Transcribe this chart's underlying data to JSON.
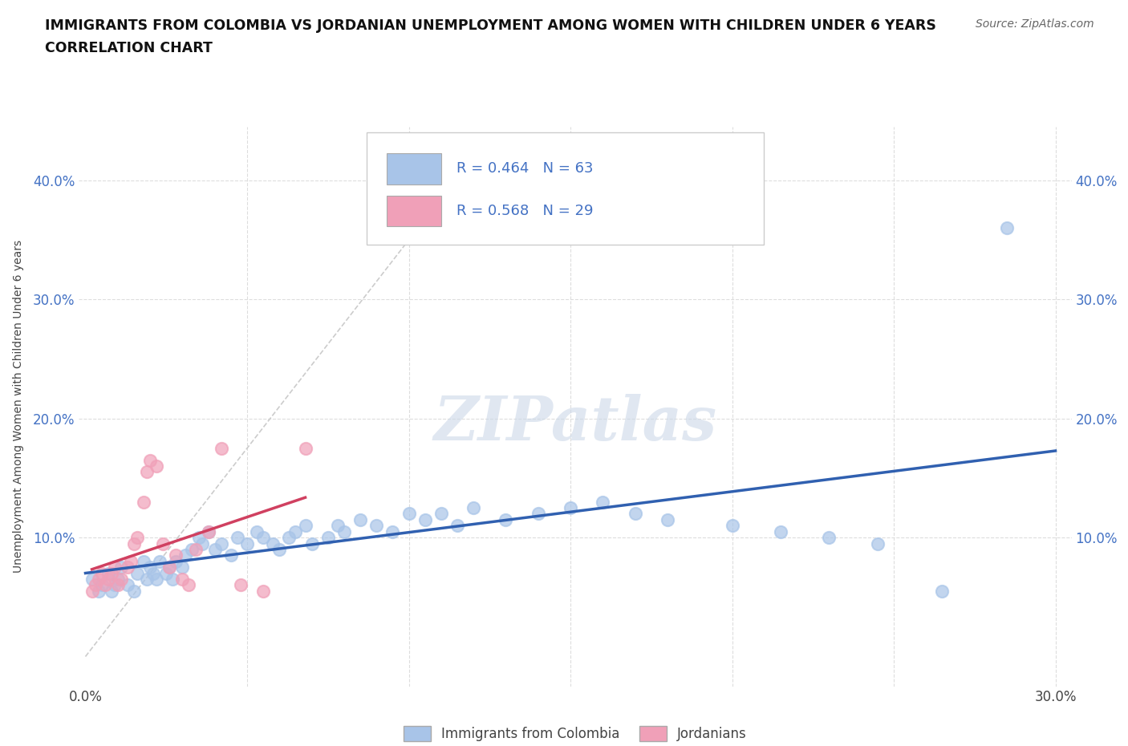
{
  "title_line1": "IMMIGRANTS FROM COLOMBIA VS JORDANIAN UNEMPLOYMENT AMONG WOMEN WITH CHILDREN UNDER 6 YEARS",
  "title_line2": "CORRELATION CHART",
  "source": "Source: ZipAtlas.com",
  "ylabel": "Unemployment Among Women with Children Under 6 years",
  "xlim": [
    -0.002,
    0.305
  ],
  "ylim": [
    -0.025,
    0.445
  ],
  "xticks": [
    0.0,
    0.05,
    0.1,
    0.15,
    0.2,
    0.25,
    0.3
  ],
  "ytick_positions": [
    0.0,
    0.1,
    0.2,
    0.3,
    0.4
  ],
  "R_colombia": 0.464,
  "N_colombia": 63,
  "R_jordanians": 0.568,
  "N_jordanians": 29,
  "colombia_scatter_color": "#a8c4e8",
  "jordanians_scatter_color": "#f0a0b8",
  "colombia_line_color": "#3060b0",
  "jordanians_line_color": "#d04060",
  "dashed_line_color": "#cccccc",
  "grid_color": "#dddddd",
  "background_color": "#ffffff",
  "watermark_color": "#ccd8e8",
  "colombia_scatter": {
    "x": [
      0.002,
      0.004,
      0.005,
      0.007,
      0.008,
      0.009,
      0.01,
      0.011,
      0.013,
      0.015,
      0.016,
      0.018,
      0.019,
      0.02,
      0.021,
      0.022,
      0.023,
      0.025,
      0.026,
      0.027,
      0.028,
      0.03,
      0.031,
      0.033,
      0.035,
      0.036,
      0.038,
      0.04,
      0.042,
      0.045,
      0.047,
      0.05,
      0.053,
      0.055,
      0.058,
      0.06,
      0.063,
      0.065,
      0.068,
      0.07,
      0.075,
      0.078,
      0.08,
      0.085,
      0.09,
      0.095,
      0.1,
      0.105,
      0.11,
      0.115,
      0.12,
      0.13,
      0.14,
      0.15,
      0.16,
      0.17,
      0.18,
      0.2,
      0.215,
      0.23,
      0.245,
      0.265,
      0.285
    ],
    "y": [
      0.065,
      0.055,
      0.06,
      0.07,
      0.055,
      0.06,
      0.065,
      0.075,
      0.06,
      0.055,
      0.07,
      0.08,
      0.065,
      0.075,
      0.07,
      0.065,
      0.08,
      0.07,
      0.075,
      0.065,
      0.08,
      0.075,
      0.085,
      0.09,
      0.1,
      0.095,
      0.105,
      0.09,
      0.095,
      0.085,
      0.1,
      0.095,
      0.105,
      0.1,
      0.095,
      0.09,
      0.1,
      0.105,
      0.11,
      0.095,
      0.1,
      0.11,
      0.105,
      0.115,
      0.11,
      0.105,
      0.12,
      0.115,
      0.12,
      0.11,
      0.125,
      0.115,
      0.12,
      0.125,
      0.13,
      0.12,
      0.115,
      0.11,
      0.105,
      0.1,
      0.095,
      0.055,
      0.36
    ]
  },
  "jordanians_scatter": {
    "x": [
      0.002,
      0.003,
      0.004,
      0.005,
      0.006,
      0.007,
      0.008,
      0.009,
      0.01,
      0.011,
      0.013,
      0.014,
      0.015,
      0.016,
      0.018,
      0.019,
      0.02,
      0.022,
      0.024,
      0.026,
      0.028,
      0.03,
      0.032,
      0.034,
      0.038,
      0.042,
      0.048,
      0.055,
      0.068
    ],
    "y": [
      0.055,
      0.06,
      0.065,
      0.07,
      0.06,
      0.065,
      0.07,
      0.075,
      0.06,
      0.065,
      0.075,
      0.08,
      0.095,
      0.1,
      0.13,
      0.155,
      0.165,
      0.16,
      0.095,
      0.075,
      0.085,
      0.065,
      0.06,
      0.09,
      0.105,
      0.175,
      0.06,
      0.055,
      0.175
    ]
  }
}
